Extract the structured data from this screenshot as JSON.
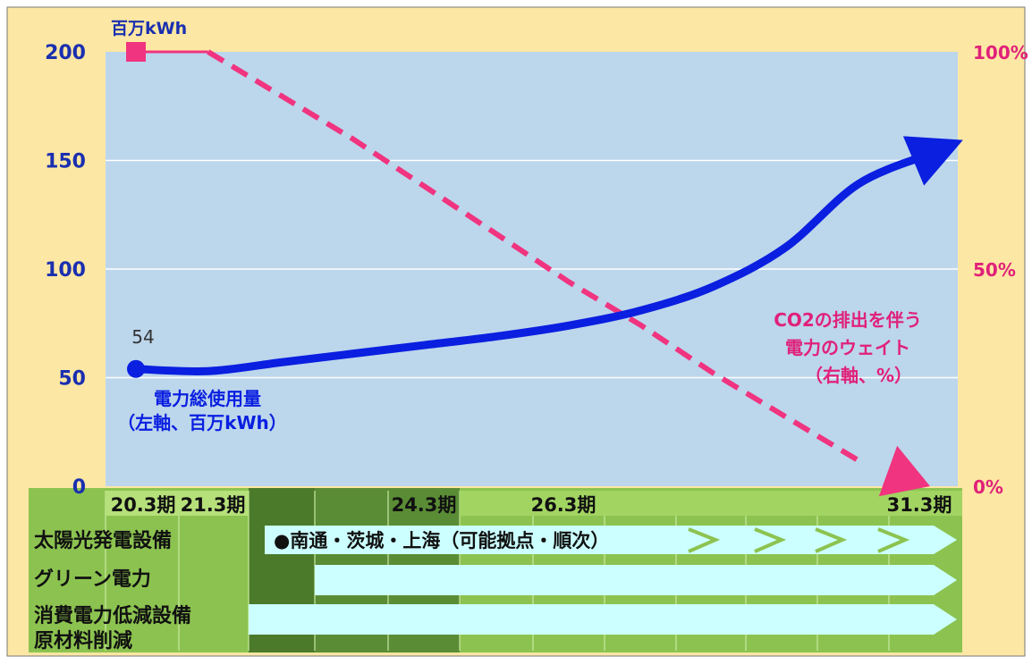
{
  "chart_data": {
    "type": "line",
    "y_left_unit": "百万kWh",
    "y_left_ticks": [
      "0",
      "50",
      "100",
      "150",
      "200"
    ],
    "y_left_range": [
      0,
      200
    ],
    "y_right_ticks": [
      "0%",
      "50%",
      "100%"
    ],
    "y_right_range": [
      0,
      100
    ],
    "grid": true,
    "period_labels": [
      "20.3期",
      "21.3期",
      "24.3期",
      "26.3期",
      "31.3期"
    ],
    "series": [
      {
        "name_lines": [
          "電力総使用量",
          "（左軸、百万kWh）"
        ],
        "axis": "left",
        "color": "#0a1fe0",
        "style": "solid-arrow",
        "x": [
          0,
          1,
          2,
          3,
          4,
          5,
          6,
          7,
          8,
          9,
          10,
          11
        ],
        "values": [
          54,
          53,
          57,
          61,
          65,
          69,
          74,
          81,
          92,
          110,
          139,
          153
        ],
        "start_label": "54"
      },
      {
        "name_lines": [
          "CO2の排出を伴う",
          "電力のウェイト",
          "（右軸、%）"
        ],
        "axis": "right",
        "color": "#f0347f",
        "style": "dashed-arrow",
        "x": [
          0,
          1,
          2,
          3,
          4,
          5,
          6,
          7,
          8,
          9,
          10,
          11
        ],
        "values": [
          100,
          100,
          90,
          80,
          69,
          58,
          47,
          37,
          26,
          16,
          6,
          0
        ]
      }
    ]
  },
  "timeline": {
    "rows": [
      {
        "label": "太陽光発電設備",
        "text": "●南通・茨城・上海（可能拠点・順次）"
      },
      {
        "label": "グリーン電力"
      },
      {
        "label_lines": [
          "消費電力低減設備",
          "原材料削減"
        ]
      }
    ]
  },
  "colors": {
    "outer_bg": "#fde7a4",
    "plot_bg": "#bcd6ec",
    "timeline_green": "#8cc350",
    "timeline_dark": "#5a8c35",
    "timeline_mid": "#4b7b2a",
    "arrow_fill": "#ccffff",
    "power": "#0a1fe0",
    "co2": "#f0347f"
  }
}
